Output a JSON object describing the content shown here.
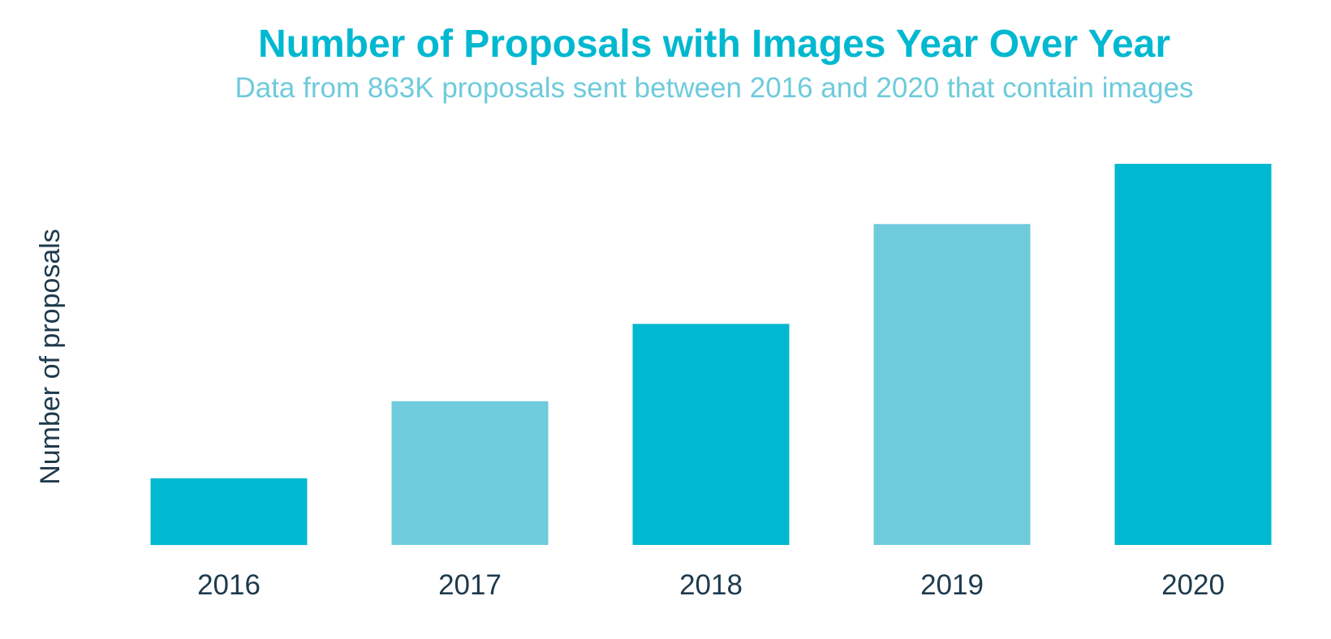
{
  "chart_data": {
    "type": "bar",
    "title": "Number of Proposals with Images Year Over Year",
    "subtitle": "Data from 863K proposals sent between 2016 and 2020 that contain images",
    "xlabel": "",
    "ylabel": "Number of proposals",
    "categories": [
      "2016",
      "2017",
      "2018",
      "2019",
      "2020"
    ],
    "values": [
      17.5,
      37.7,
      58,
      84.2,
      100
    ],
    "ylim": [
      0,
      100
    ],
    "grid": false,
    "bar_colors": [
      "#00b8d0",
      "#6ecbdb",
      "#00b8d0",
      "#6ecbdb",
      "#00b8d0"
    ]
  },
  "colors": {
    "title": "#00b8d0",
    "subtitle": "#6ecbdb",
    "axis_text": "#1e3a4c"
  }
}
